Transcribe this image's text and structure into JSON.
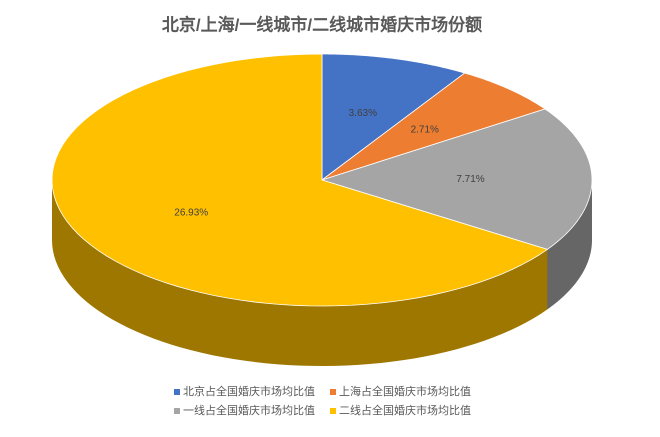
{
  "chart_data": {
    "type": "pie",
    "title": "北京/上海/一线城市/二线城市婚庆市场份额",
    "categories": [
      "北京占全国婚庆市场均比值",
      "上海占全国婚庆市场均比值",
      "一线占全国婚庆市场均比值",
      "二线占全国婚庆市场均比值"
    ],
    "values": [
      3.63,
      2.71,
      7.71,
      26.93
    ],
    "value_labels": [
      "3.63%",
      "2.71%",
      "7.71%",
      "26.93%"
    ],
    "colors": [
      "#4472c4",
      "#ed7d31",
      "#a5a5a5",
      "#ffc000"
    ],
    "legend": "bottom"
  }
}
